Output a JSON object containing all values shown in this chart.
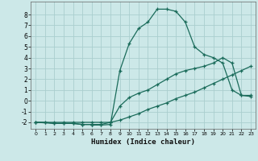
{
  "xlabel": "Humidex (Indice chaleur)",
  "background_color": "#cce8e8",
  "grid_color": "#aacece",
  "line_color": "#1a6b5a",
  "xlim": [
    -0.5,
    23.5
  ],
  "ylim": [
    -2.6,
    9.2
  ],
  "xticks": [
    0,
    1,
    2,
    3,
    4,
    5,
    6,
    7,
    8,
    9,
    10,
    11,
    12,
    13,
    14,
    15,
    16,
    17,
    18,
    19,
    20,
    21,
    22,
    23
  ],
  "yticks": [
    -2,
    -1,
    0,
    1,
    2,
    3,
    4,
    5,
    6,
    7,
    8
  ],
  "line1_x": [
    0,
    1,
    2,
    3,
    4,
    5,
    6,
    6,
    7,
    8,
    9,
    10,
    11,
    12,
    13,
    14,
    15,
    16,
    17,
    18,
    19,
    20,
    21,
    22,
    23
  ],
  "line1_y": [
    -2,
    -2,
    -2.1,
    -2.1,
    -2.1,
    -2.2,
    -2.2,
    -2.25,
    -2.25,
    -2.2,
    2.8,
    5.3,
    6.7,
    7.3,
    8.5,
    8.5,
    8.3,
    7.3,
    5.0,
    4.3,
    4.0,
    3.5,
    1.0,
    0.5,
    0.4
  ],
  "line2_x": [
    0,
    1,
    2,
    3,
    4,
    5,
    6,
    7,
    8,
    9,
    10,
    11,
    12,
    13,
    14,
    15,
    16,
    17,
    18,
    19,
    20,
    21,
    22,
    23
  ],
  "line2_y": [
    -2,
    -2,
    -2,
    -2,
    -2,
    -2,
    -2,
    -2,
    -2,
    -1.8,
    -1.5,
    -1.2,
    -0.8,
    -0.5,
    -0.2,
    0.2,
    0.5,
    0.8,
    1.2,
    1.6,
    2.0,
    2.4,
    2.8,
    3.2
  ],
  "line3_x": [
    0,
    2,
    3,
    4,
    5,
    6,
    7,
    8,
    9,
    10,
    11,
    12,
    13,
    14,
    15,
    16,
    17,
    18,
    19,
    20,
    21,
    22,
    23
  ],
  "line3_y": [
    -2,
    -2.1,
    -2.1,
    -2.1,
    -2.2,
    -2.2,
    -2.2,
    -2.0,
    -0.5,
    0.3,
    0.7,
    1.0,
    1.5,
    2.0,
    2.5,
    2.8,
    3.0,
    3.2,
    3.5,
    4.0,
    3.5,
    0.5,
    0.5
  ]
}
